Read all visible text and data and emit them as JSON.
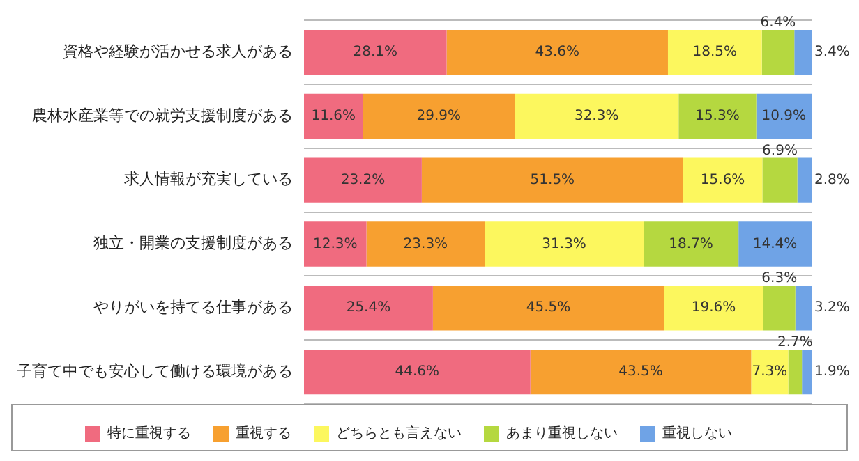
{
  "chart_data": {
    "type": "bar",
    "orientation": "horizontal",
    "stacked": true,
    "grid": "y",
    "legend": "bottom",
    "tick_labels": "y",
    "xlim": [
      0,
      100
    ],
    "categories": [
      "資格や経験が活かせる求人がある",
      "農林水産業等での就労支援制度がある",
      "求人情報が充実している",
      "独立・開業の支援制度がある",
      "やりがいを持てる仕事がある",
      "子育て中でも安心して働ける環境がある"
    ],
    "series": [
      {
        "name": "特に重視する",
        "color": "#f06b7f",
        "values": [
          28.1,
          11.6,
          23.2,
          12.3,
          25.4,
          44.6
        ],
        "value_labels": [
          "28.1%",
          "11.6%",
          "23.2%",
          "12.3%",
          "25.4%",
          "44.6%"
        ]
      },
      {
        "name": "重視する",
        "color": "#f7a030",
        "values": [
          43.6,
          29.9,
          51.5,
          23.3,
          45.5,
          43.5
        ],
        "value_labels": [
          "43.6%",
          "29.9%",
          "51.5%",
          "23.3%",
          "45.5%",
          "43.5%"
        ]
      },
      {
        "name": "どちらとも言えない",
        "color": "#fcf75e",
        "values": [
          18.5,
          32.3,
          15.6,
          31.3,
          19.6,
          7.3
        ],
        "value_labels": [
          "18.5%",
          "32.3%",
          "15.6%",
          "31.3%",
          "19.6%",
          "7.3%"
        ]
      },
      {
        "name": "あまり重視しない",
        "color": "#b5d840",
        "values": [
          6.4,
          15.3,
          6.9,
          18.7,
          6.3,
          2.7
        ],
        "value_labels": [
          "6.4%",
          "15.3%",
          "6.9%",
          "18.7%",
          "6.3%",
          "2.7%"
        ]
      },
      {
        "name": "重視しない",
        "color": "#6fa3e6",
        "values": [
          3.4,
          10.9,
          2.8,
          14.4,
          3.2,
          1.9
        ],
        "value_labels": [
          "3.4%",
          "10.9%",
          "2.8%",
          "14.4%",
          "3.2%",
          "1.9%"
        ]
      }
    ]
  }
}
